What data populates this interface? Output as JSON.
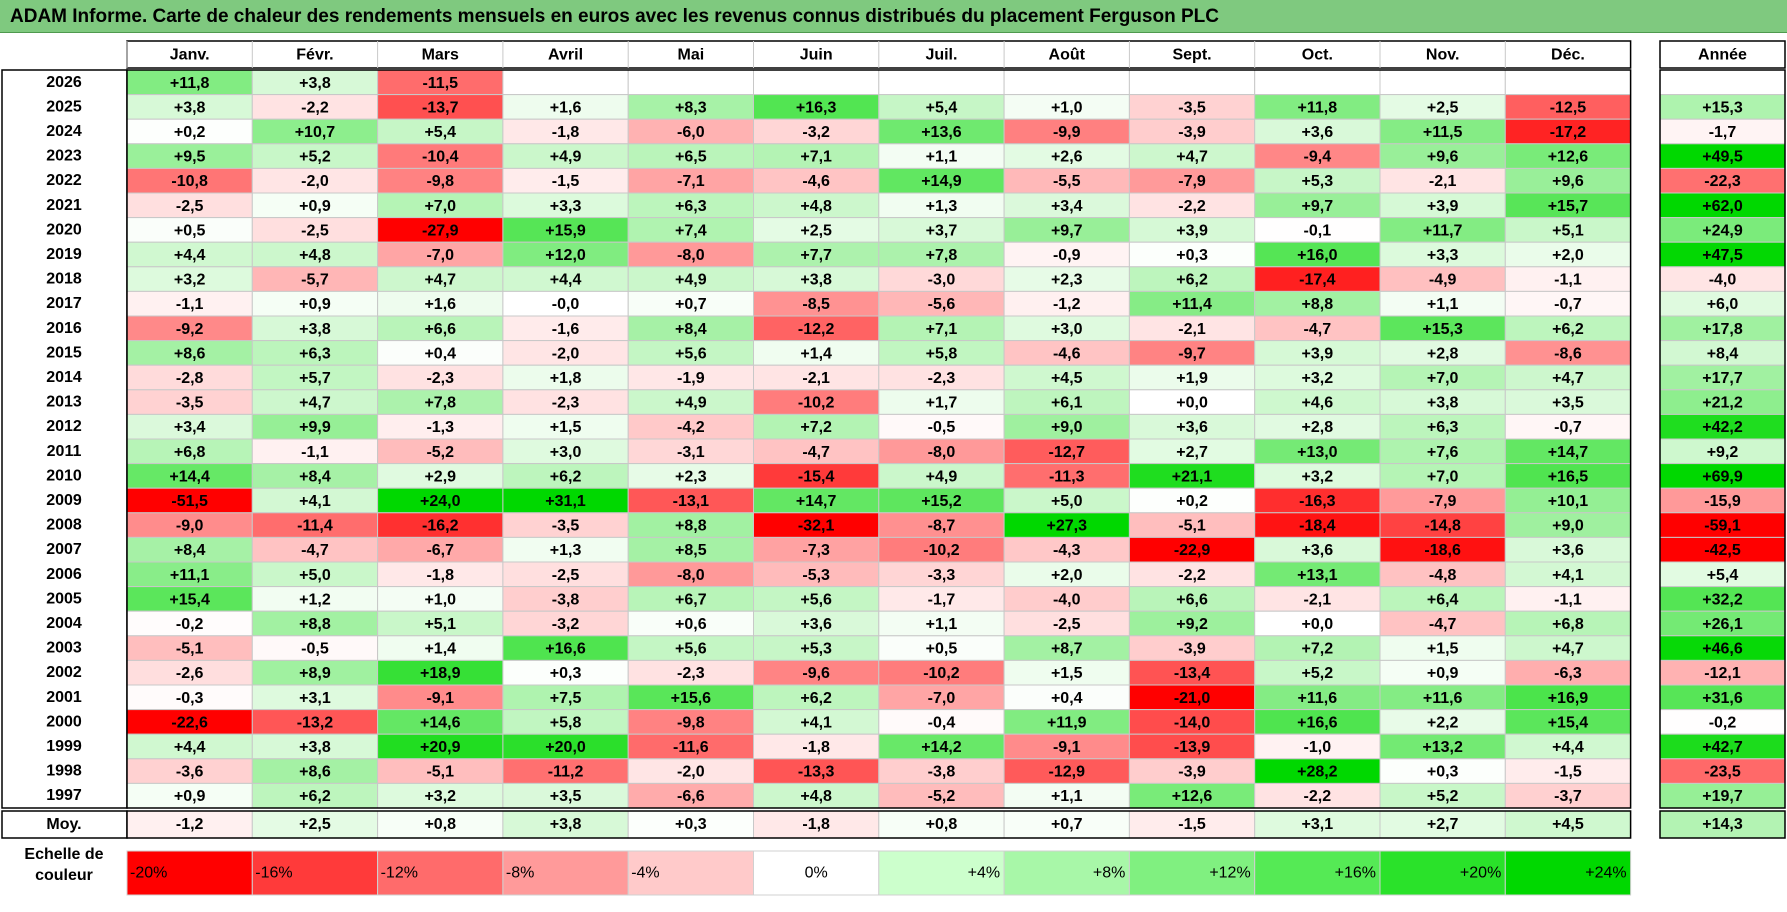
{
  "title": "ADAM Informe. Carte de chaleur des rendements mensuels en euros avec les revenus connus distribués du placement Ferguson PLC",
  "chart_data": {
    "type": "heatmap",
    "title": "ADAM Informe. Carte de chaleur des rendements mensuels en euros avec les revenus connus distribués du placement Ferguson PLC",
    "columns": [
      "Janv.",
      "Févr.",
      "Mars",
      "Avril",
      "Mai",
      "Juin",
      "Juil.",
      "Août",
      "Sept.",
      "Oct.",
      "Nov.",
      "Déc."
    ],
    "annual_header": "Année",
    "rows": [
      {
        "year": "2026",
        "values": [
          "+11,8",
          "+3,8",
          "-11,5",
          "",
          "",
          "",
          "",
          "",
          "",
          "",
          "",
          ""
        ],
        "annual": ""
      },
      {
        "year": "2025",
        "values": [
          "+3,8",
          "-2,2",
          "-13,7",
          "+1,6",
          "+8,3",
          "+16,3",
          "+5,4",
          "+1,0",
          "-3,5",
          "+11,8",
          "+2,5",
          "-12,5"
        ],
        "annual": "+15,3"
      },
      {
        "year": "2024",
        "values": [
          "+0,2",
          "+10,7",
          "+5,4",
          "-1,8",
          "-6,0",
          "-3,2",
          "+13,6",
          "-9,9",
          "-3,9",
          "+3,6",
          "+11,5",
          "-17,2"
        ],
        "annual": "-1,7"
      },
      {
        "year": "2023",
        "values": [
          "+9,5",
          "+5,2",
          "-10,4",
          "+4,9",
          "+6,5",
          "+7,1",
          "+1,1",
          "+2,6",
          "+4,7",
          "-9,4",
          "+9,6",
          "+12,6"
        ],
        "annual": "+49,5"
      },
      {
        "year": "2022",
        "values": [
          "-10,8",
          "-2,0",
          "-9,8",
          "-1,5",
          "-7,1",
          "-4,6",
          "+14,9",
          "-5,5",
          "-7,9",
          "+5,3",
          "-2,1",
          "+9,6"
        ],
        "annual": "-22,3"
      },
      {
        "year": "2021",
        "values": [
          "-2,5",
          "+0,9",
          "+7,0",
          "+3,3",
          "+6,3",
          "+4,8",
          "+1,3",
          "+3,4",
          "-2,2",
          "+9,7",
          "+3,9",
          "+15,7"
        ],
        "annual": "+62,0"
      },
      {
        "year": "2020",
        "values": [
          "+0,5",
          "-2,5",
          "-27,9",
          "+15,9",
          "+7,4",
          "+2,5",
          "+3,7",
          "+9,7",
          "+3,9",
          "-0,1",
          "+11,7",
          "+5,1"
        ],
        "annual": "+24,9"
      },
      {
        "year": "2019",
        "values": [
          "+4,4",
          "+4,8",
          "-7,0",
          "+12,0",
          "-8,0",
          "+7,7",
          "+7,8",
          "-0,9",
          "+0,3",
          "+16,0",
          "+3,3",
          "+2,0"
        ],
        "annual": "+47,5"
      },
      {
        "year": "2018",
        "values": [
          "+3,2",
          "-5,7",
          "+4,7",
          "+4,4",
          "+4,9",
          "+3,8",
          "-3,0",
          "+2,3",
          "+6,2",
          "-17,4",
          "-4,9",
          "-1,1"
        ],
        "annual": "-4,0"
      },
      {
        "year": "2017",
        "values": [
          "-1,1",
          "+0,9",
          "+1,6",
          "-0,0",
          "+0,7",
          "-8,5",
          "-5,6",
          "-1,2",
          "+11,4",
          "+8,8",
          "+1,1",
          "-0,7"
        ],
        "annual": "+6,0"
      },
      {
        "year": "2016",
        "values": [
          "-9,2",
          "+3,8",
          "+6,6",
          "-1,6",
          "+8,4",
          "-12,2",
          "+7,1",
          "+3,0",
          "-2,1",
          "-4,7",
          "+15,3",
          "+6,2"
        ],
        "annual": "+17,8"
      },
      {
        "year": "2015",
        "values": [
          "+8,6",
          "+6,3",
          "+0,4",
          "-2,0",
          "+5,6",
          "+1,4",
          "+5,8",
          "-4,6",
          "-9,7",
          "+3,9",
          "+2,8",
          "-8,6"
        ],
        "annual": "+8,4"
      },
      {
        "year": "2014",
        "values": [
          "-2,8",
          "+5,7",
          "-2,3",
          "+1,8",
          "-1,9",
          "-2,1",
          "-2,3",
          "+4,5",
          "+1,9",
          "+3,2",
          "+7,0",
          "+4,7"
        ],
        "annual": "+17,7"
      },
      {
        "year": "2013",
        "values": [
          "-3,5",
          "+4,7",
          "+7,8",
          "-2,3",
          "+4,9",
          "-10,2",
          "+1,7",
          "+6,1",
          "+0,0",
          "+4,6",
          "+3,8",
          "+3,5"
        ],
        "annual": "+21,2"
      },
      {
        "year": "2012",
        "values": [
          "+3,4",
          "+9,9",
          "-1,3",
          "+1,5",
          "-4,2",
          "+7,2",
          "-0,5",
          "+9,0",
          "+3,6",
          "+2,8",
          "+6,3",
          "-0,7"
        ],
        "annual": "+42,2"
      },
      {
        "year": "2011",
        "values": [
          "+6,8",
          "-1,1",
          "-5,2",
          "+3,0",
          "-3,1",
          "-4,7",
          "-8,0",
          "-12,7",
          "+2,7",
          "+13,0",
          "+7,6",
          "+14,7"
        ],
        "annual": "+9,2"
      },
      {
        "year": "2010",
        "values": [
          "+14,4",
          "+8,4",
          "+2,9",
          "+6,2",
          "+2,3",
          "-15,4",
          "+4,9",
          "-11,3",
          "+21,1",
          "+3,2",
          "+7,0",
          "+16,5"
        ],
        "annual": "+69,9"
      },
      {
        "year": "2009",
        "values": [
          "-51,5",
          "+4,1",
          "+24,0",
          "+31,1",
          "-13,1",
          "+14,7",
          "+15,2",
          "+5,0",
          "+0,2",
          "-16,3",
          "-7,9",
          "+10,1"
        ],
        "annual": "-15,9"
      },
      {
        "year": "2008",
        "values": [
          "-9,0",
          "-11,4",
          "-16,2",
          "-3,5",
          "+8,8",
          "-32,1",
          "-8,7",
          "+27,3",
          "-5,1",
          "-18,4",
          "-14,8",
          "+9,0"
        ],
        "annual": "-59,1"
      },
      {
        "year": "2007",
        "values": [
          "+8,4",
          "-4,7",
          "-6,7",
          "+1,3",
          "+8,5",
          "-7,3",
          "-10,2",
          "-4,3",
          "-22,9",
          "+3,6",
          "-18,6",
          "+3,6"
        ],
        "annual": "-42,5"
      },
      {
        "year": "2006",
        "values": [
          "+11,1",
          "+5,0",
          "-1,8",
          "-2,5",
          "-8,0",
          "-5,3",
          "-3,3",
          "+2,0",
          "-2,2",
          "+13,1",
          "-4,8",
          "+4,1"
        ],
        "annual": "+5,4"
      },
      {
        "year": "2005",
        "values": [
          "+15,4",
          "+1,2",
          "+1,0",
          "-3,8",
          "+6,7",
          "+5,6",
          "-1,7",
          "-4,0",
          "+6,6",
          "-2,1",
          "+6,4",
          "-1,1"
        ],
        "annual": "+32,2"
      },
      {
        "year": "2004",
        "values": [
          "-0,2",
          "+8,8",
          "+5,1",
          "-3,2",
          "+0,6",
          "+3,6",
          "+1,1",
          "-2,5",
          "+9,2",
          "+0,0",
          "-4,7",
          "+6,8"
        ],
        "annual": "+26,1"
      },
      {
        "year": "2003",
        "values": [
          "-5,1",
          "-0,5",
          "+1,4",
          "+16,6",
          "+5,6",
          "+5,3",
          "+0,5",
          "+8,7",
          "-3,9",
          "+7,2",
          "+1,5",
          "+4,7"
        ],
        "annual": "+46,6"
      },
      {
        "year": "2002",
        "values": [
          "-2,6",
          "+8,9",
          "+18,9",
          "+0,3",
          "-2,3",
          "-9,6",
          "-10,2",
          "+1,5",
          "-13,4",
          "+5,2",
          "+0,9",
          "-6,3"
        ],
        "annual": "-12,1"
      },
      {
        "year": "2001",
        "values": [
          "-0,3",
          "+3,1",
          "-9,1",
          "+7,5",
          "+15,6",
          "+6,2",
          "-7,0",
          "+0,4",
          "-21,0",
          "+11,6",
          "+11,6",
          "+16,9"
        ],
        "annual": "+31,6"
      },
      {
        "year": "2000",
        "values": [
          "-22,6",
          "-13,2",
          "+14,6",
          "+5,8",
          "-9,8",
          "+4,1",
          "-0,4",
          "+11,9",
          "-14,0",
          "+16,6",
          "+2,2",
          "+15,4"
        ],
        "annual": "-0,2"
      },
      {
        "year": "1999",
        "values": [
          "+4,4",
          "+3,8",
          "+20,9",
          "+20,0",
          "-11,6",
          "-1,8",
          "+14,2",
          "-9,1",
          "-13,9",
          "-1,0",
          "+13,2",
          "+4,4"
        ],
        "annual": "+42,7"
      },
      {
        "year": "1998",
        "values": [
          "-3,6",
          "+8,6",
          "-5,1",
          "-11,2",
          "-2,0",
          "-13,3",
          "-3,8",
          "-12,9",
          "-3,9",
          "+28,2",
          "+0,3",
          "-1,5"
        ],
        "annual": "-23,5"
      },
      {
        "year": "1997",
        "values": [
          "+0,9",
          "+6,2",
          "+3,2",
          "+3,5",
          "-6,6",
          "+4,8",
          "-5,2",
          "+1,1",
          "+12,6",
          "-2,2",
          "+5,2",
          "-3,7"
        ],
        "annual": "+19,7"
      }
    ],
    "average": {
      "label": "Moy.",
      "values": [
        "-1,2",
        "+2,5",
        "+0,8",
        "+3,8",
        "+0,3",
        "-1,8",
        "+0,8",
        "+0,7",
        "-1,5",
        "+3,1",
        "+2,7",
        "+4,5"
      ],
      "annual": "+14,3"
    },
    "scale": {
      "label": [
        "Echelle de",
        "couleur"
      ],
      "items": [
        {
          "label": "-20%",
          "value": -20,
          "color": "#ff0000"
        },
        {
          "label": "-16%",
          "value": -16,
          "color": "#ff3a3a"
        },
        {
          "label": "-12%",
          "value": -12,
          "color": "#ff6b6b"
        },
        {
          "label": "-8%",
          "value": -8,
          "color": "#ff9a9a"
        },
        {
          "label": "-4%",
          "value": -4,
          "color": "#ffcaca"
        },
        {
          "label": "0%",
          "value": 0,
          "color": "#ffffff"
        },
        {
          "label": "+4%",
          "value": 4,
          "color": "#ccffcc"
        },
        {
          "label": "+8%",
          "value": 8,
          "color": "#a8f7a8"
        },
        {
          "label": "+12%",
          "value": 12,
          "color": "#80f080"
        },
        {
          "label": "+16%",
          "value": 16,
          "color": "#55ea55"
        },
        {
          "label": "+20%",
          "value": 20,
          "color": "#2ae22a"
        },
        {
          "label": "+24%",
          "value": 24,
          "color": "#00d800"
        }
      ]
    }
  }
}
